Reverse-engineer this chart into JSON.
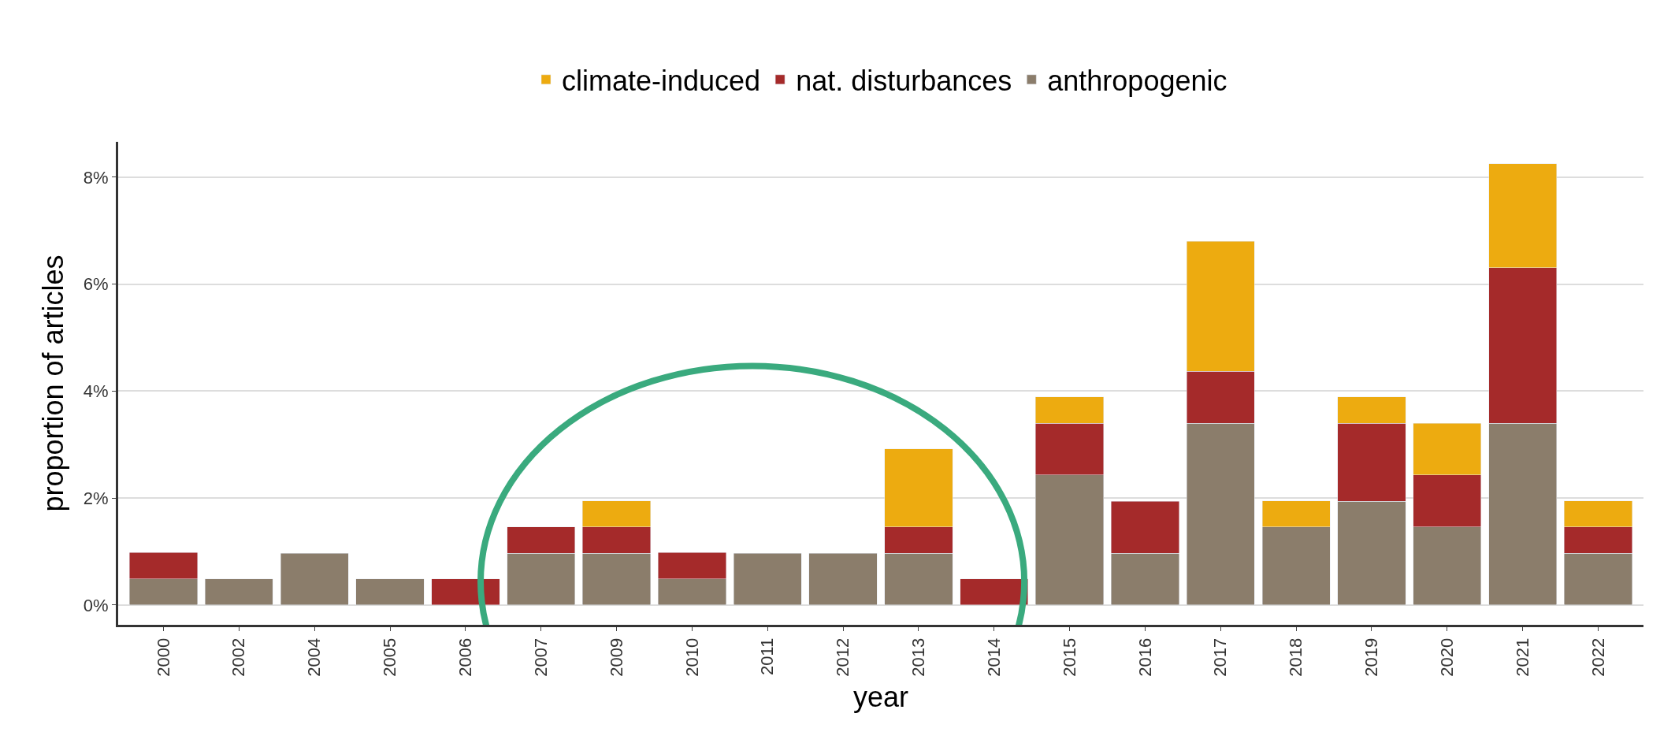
{
  "chart_data": {
    "type": "bar",
    "stacked": true,
    "xlabel": "year",
    "ylabel": "proportion of articles",
    "categories": [
      "2000",
      "2002",
      "2004",
      "2005",
      "2006",
      "2007",
      "2009",
      "2010",
      "2011",
      "2012",
      "2013",
      "2014",
      "2015",
      "2016",
      "2017",
      "2018",
      "2019",
      "2020",
      "2021",
      "2022"
    ],
    "series": [
      {
        "name": "anthropogenic",
        "color": "#8b7d6b",
        "values": [
          0.49,
          0.49,
          0.97,
          0.49,
          null,
          0.97,
          0.97,
          0.49,
          0.97,
          0.97,
          0.97,
          null,
          2.43,
          0.97,
          3.4,
          1.46,
          1.94,
          1.46,
          3.4,
          0.97
        ]
      },
      {
        "name": "nat. disturbances",
        "color": "#a52a2a",
        "values": [
          0.49,
          null,
          null,
          null,
          0.49,
          0.49,
          0.49,
          0.49,
          null,
          null,
          0.49,
          0.49,
          0.97,
          0.97,
          0.97,
          null,
          1.46,
          0.97,
          2.91,
          0.49
        ]
      },
      {
        "name": "climate-induced",
        "color": "#edab10",
        "values": [
          null,
          null,
          null,
          null,
          null,
          null,
          0.49,
          null,
          null,
          null,
          1.46,
          null,
          0.49,
          null,
          2.43,
          0.49,
          0.49,
          0.97,
          1.94,
          0.49
        ]
      }
    ],
    "ylim": [
      -0.37,
      8.66
    ],
    "yticks": [
      {
        "value": 0,
        "label": "0%"
      },
      {
        "value": 2,
        "label": "2%"
      },
      {
        "value": 4,
        "label": "4%"
      },
      {
        "value": 6,
        "label": "6%"
      },
      {
        "value": 8,
        "label": "8%"
      }
    ],
    "grid": "y",
    "legend": "top"
  }
}
